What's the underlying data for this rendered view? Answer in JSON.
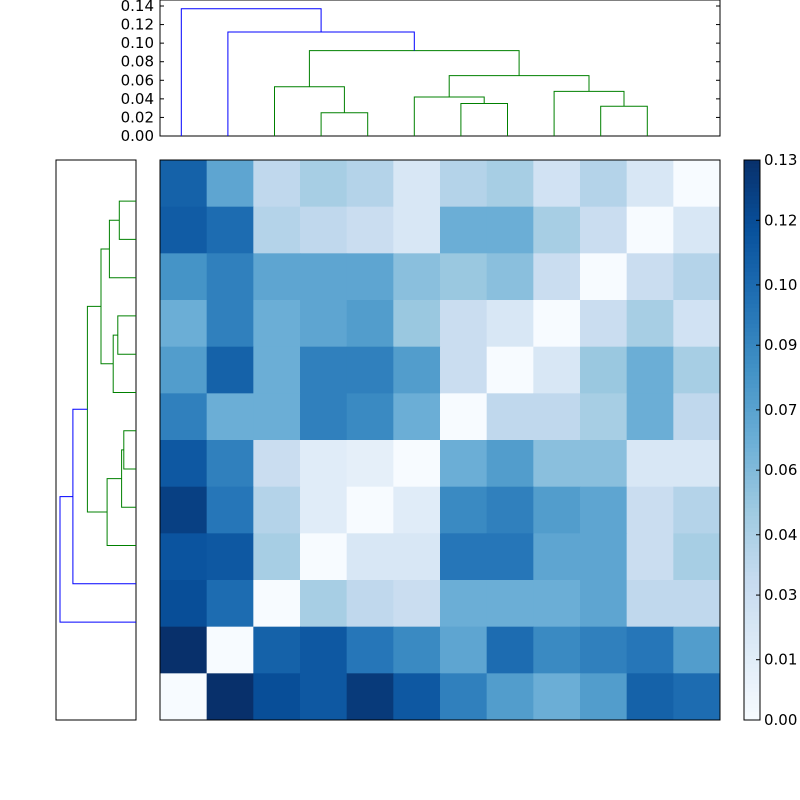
{
  "chart_data": [
    {
      "type": "dendrogram",
      "position": "top",
      "ytick_labels": [
        "0.00",
        "0.02",
        "0.04",
        "0.06",
        "0.08",
        "0.10",
        "0.12",
        "0.14"
      ],
      "ylim": [
        0,
        0.14
      ],
      "colors": {
        "above_threshold": "#0000ff",
        "cluster": "#008000"
      },
      "links": [
        {
          "x": [
            1.5,
            1.5,
            2.5,
            2.5
          ],
          "y": [
            0.0,
            0.025,
            0.025,
            0.0
          ],
          "color": "#008000"
        },
        {
          "x": [
            0.5,
            0.5,
            2.0,
            2.0
          ],
          "y": [
            0.0,
            0.053,
            0.053,
            0.025
          ],
          "color": "#008000"
        },
        {
          "x": [
            4.5,
            4.5,
            5.5,
            5.5
          ],
          "y": [
            0.0,
            0.035,
            0.035,
            0.0
          ],
          "color": "#008000"
        },
        {
          "x": [
            3.5,
            3.5,
            5.0,
            5.0
          ],
          "y": [
            0.0,
            0.042,
            0.042,
            0.035
          ],
          "color": "#008000"
        },
        {
          "x": [
            7.5,
            7.5,
            8.5,
            8.5
          ],
          "y": [
            0.0,
            0.032,
            0.032,
            0.0
          ],
          "color": "#008000"
        },
        {
          "x": [
            6.5,
            6.5,
            8.0,
            8.0
          ],
          "y": [
            0.0,
            0.048,
            0.048,
            0.032
          ],
          "color": "#008000"
        },
        {
          "x": [
            4.25,
            4.25,
            7.25,
            7.25
          ],
          "y": [
            0.042,
            0.065,
            0.065,
            0.048
          ],
          "color": "#008000"
        },
        {
          "x": [
            1.25,
            1.25,
            5.75,
            5.75
          ],
          "y": [
            0.053,
            0.092,
            0.092,
            0.065
          ],
          "color": "#008000"
        },
        {
          "x": [
            -0.5,
            -0.5,
            3.5,
            3.5
          ],
          "y": [
            0.0,
            0.112,
            0.112,
            0.092
          ],
          "color": "#0000ff"
        },
        {
          "x": [
            -1.5,
            -1.5,
            1.5,
            1.5
          ],
          "y": [
            0.0,
            0.137,
            0.137,
            0.112
          ],
          "color": "#0000ff"
        }
      ]
    },
    {
      "type": "dendrogram",
      "position": "left",
      "colors": {
        "above_threshold": "#0000ff",
        "cluster": "#008000"
      },
      "links": [
        {
          "x": [
            0.0,
            0.22,
            0.22,
            0.0
          ],
          "y": [
            0.5,
            0.5,
            1.5,
            1.5
          ],
          "color": "#008000"
        },
        {
          "x": [
            0.0,
            0.35,
            0.35,
            0.22
          ],
          "y": [
            2.5,
            2.5,
            1.0,
            1.0
          ],
          "color": "#008000"
        },
        {
          "x": [
            0.0,
            0.24,
            0.24,
            0.0
          ],
          "y": [
            3.5,
            3.5,
            4.5,
            4.5
          ],
          "color": "#008000"
        },
        {
          "x": [
            0.0,
            0.3,
            0.3,
            0.24
          ],
          "y": [
            5.5,
            5.5,
            4.0,
            4.0
          ],
          "color": "#008000"
        },
        {
          "x": [
            0.35,
            0.46,
            0.46,
            0.3
          ],
          "y": [
            1.75,
            1.75,
            4.75,
            4.75
          ],
          "color": "#008000"
        },
        {
          "x": [
            0.0,
            0.16,
            0.16,
            0.0
          ],
          "y": [
            6.5,
            6.5,
            7.5,
            7.5
          ],
          "color": "#008000"
        },
        {
          "x": [
            0.0,
            0.19,
            0.19,
            0.16
          ],
          "y": [
            8.5,
            8.5,
            7.0,
            7.0
          ],
          "color": "#008000"
        },
        {
          "x": [
            0.0,
            0.38,
            0.38,
            0.19
          ],
          "y": [
            9.5,
            9.5,
            7.75,
            7.75
          ],
          "color": "#008000"
        },
        {
          "x": [
            0.46,
            0.64,
            0.64,
            0.38
          ],
          "y": [
            3.25,
            3.25,
            8.625,
            8.625
          ],
          "color": "#008000"
        },
        {
          "x": [
            0.0,
            0.83,
            0.83,
            0.64
          ],
          "y": [
            10.5,
            10.5,
            5.94,
            5.94
          ],
          "color": "#0000ff"
        },
        {
          "x": [
            0.0,
            1.0,
            1.0,
            0.83
          ],
          "y": [
            11.5,
            11.5,
            8.22,
            8.22
          ],
          "color": "#0000ff"
        }
      ]
    },
    {
      "type": "heatmap",
      "colormap": "Blues",
      "vmin": 0,
      "vmax": 0.13,
      "values": [
        [
          0.105,
          0.07,
          0.035,
          0.045,
          0.04,
          0.02,
          0.04,
          0.045,
          0.025,
          0.04,
          0.02,
          0.0
        ],
        [
          0.108,
          0.1,
          0.04,
          0.035,
          0.03,
          0.02,
          0.065,
          0.065,
          0.045,
          0.03,
          0.0,
          0.02
        ],
        [
          0.08,
          0.09,
          0.07,
          0.07,
          0.07,
          0.055,
          0.05,
          0.055,
          0.03,
          0.0,
          0.03,
          0.04
        ],
        [
          0.065,
          0.09,
          0.065,
          0.07,
          0.075,
          0.05,
          0.03,
          0.02,
          0.0,
          0.03,
          0.045,
          0.025
        ],
        [
          0.075,
          0.105,
          0.065,
          0.09,
          0.09,
          0.075,
          0.03,
          0.0,
          0.02,
          0.05,
          0.065,
          0.045
        ],
        [
          0.09,
          0.065,
          0.065,
          0.09,
          0.085,
          0.065,
          0.0,
          0.035,
          0.035,
          0.045,
          0.065,
          0.035
        ],
        [
          0.11,
          0.09,
          0.03,
          0.015,
          0.012,
          0.0,
          0.065,
          0.075,
          0.055,
          0.055,
          0.02,
          0.02
        ],
        [
          0.122,
          0.095,
          0.04,
          0.015,
          0.0,
          0.015,
          0.085,
          0.09,
          0.075,
          0.07,
          0.03,
          0.04
        ],
        [
          0.112,
          0.11,
          0.045,
          0.0,
          0.02,
          0.02,
          0.095,
          0.095,
          0.07,
          0.07,
          0.03,
          0.045
        ],
        [
          0.115,
          0.1,
          0.0,
          0.045,
          0.035,
          0.03,
          0.065,
          0.065,
          0.065,
          0.07,
          0.035,
          0.035
        ],
        [
          0.13,
          0.0,
          0.105,
          0.11,
          0.095,
          0.085,
          0.07,
          0.1,
          0.085,
          0.09,
          0.095,
          0.075
        ],
        [
          0.0,
          0.13,
          0.115,
          0.11,
          0.125,
          0.11,
          0.09,
          0.075,
          0.065,
          0.075,
          0.105,
          0.1
        ]
      ]
    },
    {
      "type": "colorbar",
      "tick_labels": [
        "0.00",
        "0.01",
        "0.03",
        "0.04",
        "0.06",
        "0.07",
        "0.09",
        "0.10",
        "0.12",
        "0.13"
      ],
      "tick_values": [
        0.0,
        0.014,
        0.029,
        0.043,
        0.058,
        0.072,
        0.087,
        0.101,
        0.116,
        0.13
      ],
      "range": [
        0,
        0.13
      ]
    }
  ]
}
